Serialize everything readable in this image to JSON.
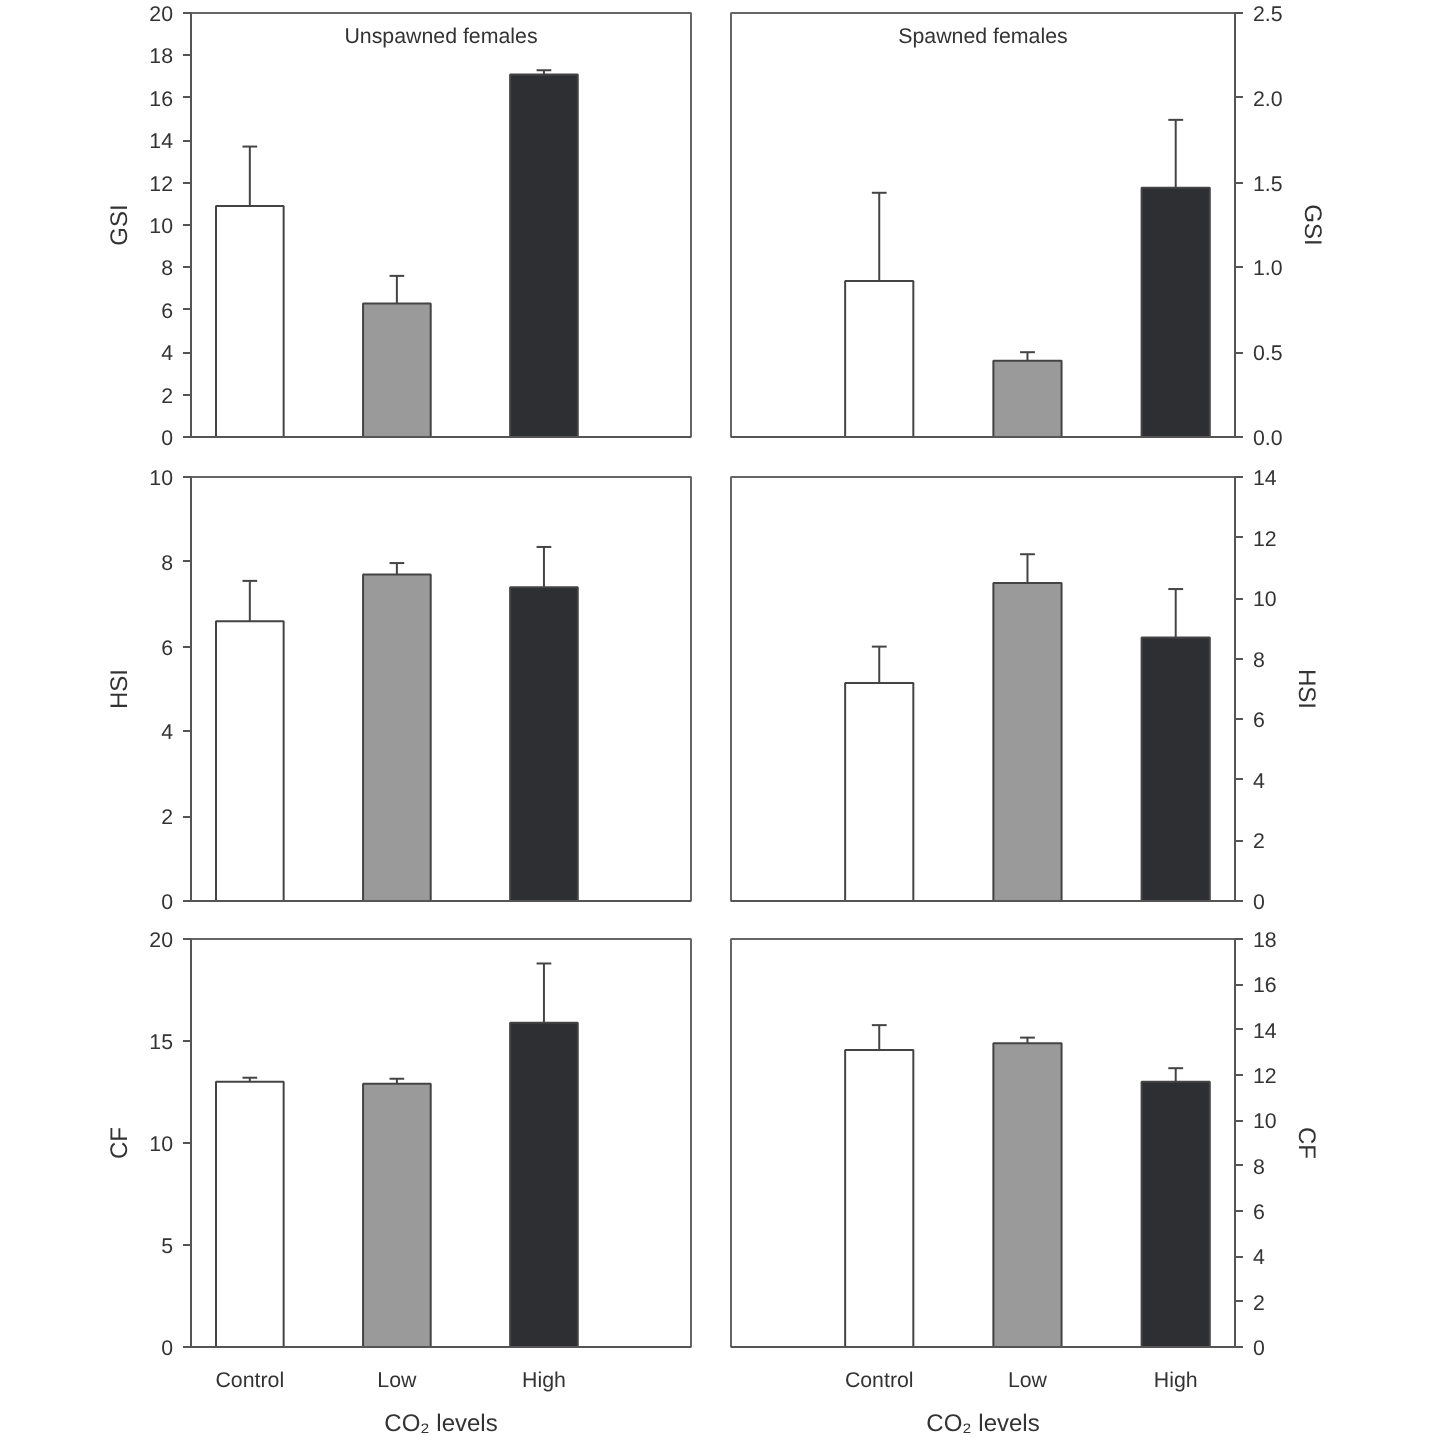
{
  "chart_data": [
    {
      "type": "bar",
      "categories": [
        null,
        null,
        null
      ],
      "colors": [
        "#ffffff",
        "#9a9a9a",
        "#2e2f33"
      ],
      "values": [
        10.9,
        6.3,
        17.1
      ],
      "errors": [
        2.8,
        1.3,
        0.2
      ],
      "ylim": [
        0,
        20
      ],
      "yticks": [
        0,
        2,
        4,
        6,
        8,
        10,
        12,
        14,
        16,
        18,
        20
      ],
      "ylabel": "GSI",
      "annotations": [
        "Unspawned females"
      ],
      "tick_labels": "y"
    },
    {
      "type": "bar",
      "categories": [
        null,
        null,
        null
      ],
      "colors": [
        "#ffffff",
        "#9a9a9a",
        "#2e2f33"
      ],
      "series": [
        {
          "axis": "y2",
          "values": [
            0.92,
            0.45,
            1.47
          ],
          "errors": [
            0.52,
            0.05,
            0.4
          ]
        }
      ],
      "y2lim": [
        0,
        2.5
      ],
      "y2ticks": [
        {
          "value": 0,
          "label": "0.0"
        },
        0.5,
        {
          "value": 1,
          "label": "1.0"
        },
        1.5,
        {
          "value": 2,
          "label": "2.0"
        },
        2.5
      ],
      "y2label": "GSI",
      "annotations": [
        "Spawned females"
      ],
      "tick_labels": "y"
    },
    {
      "type": "bar",
      "categories": [
        null,
        null,
        null
      ],
      "colors": [
        "#ffffff",
        "#9a9a9a",
        "#2e2f33"
      ],
      "values": [
        6.6,
        7.7,
        7.4
      ],
      "errors": [
        0.95,
        0.27,
        0.95
      ],
      "ylim": [
        0,
        10
      ],
      "yticks": [
        0,
        2,
        4,
        6,
        8,
        10
      ],
      "ylabel": "HSI",
      "tick_labels": "y"
    },
    {
      "type": "bar",
      "categories": [
        null,
        null,
        null
      ],
      "colors": [
        "#ffffff",
        "#9a9a9a",
        "#2e2f33"
      ],
      "series": [
        {
          "axis": "y2",
          "values": [
            7.2,
            10.5,
            8.7
          ],
          "errors": [
            1.2,
            0.95,
            1.6
          ]
        }
      ],
      "y2lim": [
        0,
        14
      ],
      "y2ticks": [
        0,
        2,
        4,
        6,
        8,
        10,
        12,
        14
      ],
      "y2label": "HSI",
      "tick_labels": "y"
    },
    {
      "type": "bar",
      "categories": [
        "Control",
        "Low",
        "High"
      ],
      "colors": [
        "#ffffff",
        "#9a9a9a",
        "#2e2f33"
      ],
      "values": [
        13.0,
        12.9,
        15.9
      ],
      "errors": [
        0.2,
        0.25,
        2.9
      ],
      "ylim": [
        0,
        20
      ],
      "yticks": [
        0,
        5,
        10,
        15,
        20
      ],
      "ylabel": "CF",
      "xlabel": "CO₂ levels"
    },
    {
      "type": "bar",
      "categories": [
        "Control",
        "Low",
        "High"
      ],
      "colors": [
        "#ffffff",
        "#9a9a9a",
        "#2e2f33"
      ],
      "series": [
        {
          "axis": "y2",
          "values": [
            13.1,
            13.4,
            11.7
          ],
          "errors": [
            1.1,
            0.25,
            0.6
          ]
        }
      ],
      "y2lim": [
        0,
        18
      ],
      "y2ticks": [
        0,
        2,
        4,
        6,
        8,
        10,
        12,
        14,
        16,
        18
      ],
      "y2label": "CF",
      "xlabel": "CO₂ levels"
    }
  ]
}
